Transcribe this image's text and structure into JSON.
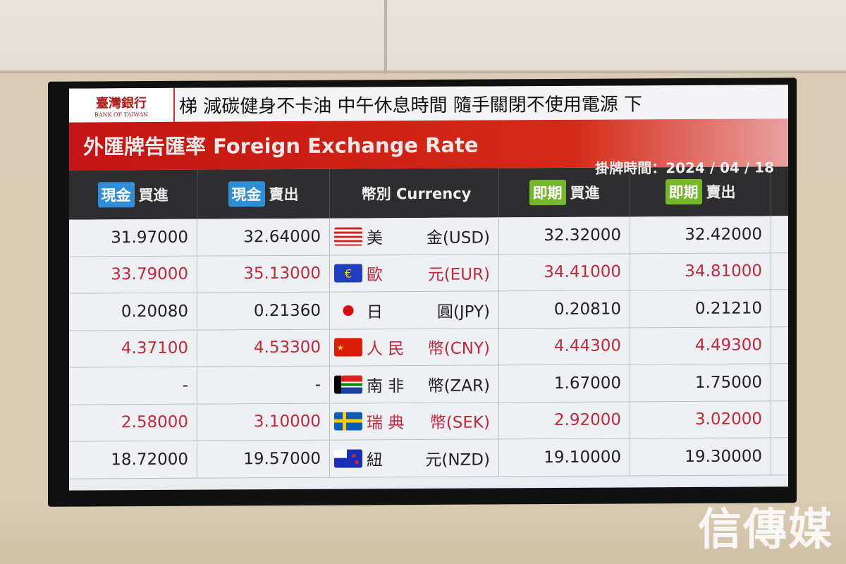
{
  "ticker": {
    "bank_name": "臺灣銀行",
    "bank_name_en": "BANK OF TAIWAN",
    "text": "梯 減碳健身不卡油 中午休息時間 隨手關閉不使用電源 下"
  },
  "title": "外匯牌告匯率 Foreign Exchange Rate",
  "posted_time": "掛牌時間：2024 / 04 / 18",
  "headers": {
    "cash_badge": "現金",
    "buy": "買進",
    "sell": "賣出",
    "currency": "幣別 Currency",
    "spot_badge": "即期"
  },
  "colors": {
    "red_band": "#c41414",
    "cash_badge": "#2e8fd8",
    "spot_badge": "#77b82a",
    "red_text": "#c22a3c"
  },
  "rows": [
    {
      "cash_buy": "31.97000",
      "cash_sell": "32.64000",
      "name_a": "美",
      "name_b": "金(USD)",
      "flag": "us-flag-icon",
      "flag_text": "",
      "cash_tone": "blk",
      "spot_buy": "32.32000",
      "spot_sell": "32.42000"
    },
    {
      "cash_buy": "33.79000",
      "cash_sell": "35.13000",
      "name_a": "歐",
      "name_b": "元(EUR)",
      "flag": "euro-icon",
      "flag_text": "€",
      "cash_tone": "red",
      "spot_buy": "34.41000",
      "spot_sell": "34.81000"
    },
    {
      "cash_buy": "0.20080",
      "cash_sell": "0.21360",
      "name_a": "日",
      "name_b": "圓(JPY)",
      "flag": "japan-flag-icon",
      "flag_text": "",
      "cash_tone": "blk",
      "spot_buy": "0.20810",
      "spot_sell": "0.21210"
    },
    {
      "cash_buy": "4.37100",
      "cash_sell": "4.53300",
      "name_a": "人 民",
      "name_b": "幣(CNY)",
      "flag": "china-flag-icon",
      "flag_text": "★",
      "cash_tone": "red",
      "spot_buy": "4.44300",
      "spot_sell": "4.49300"
    },
    {
      "cash_buy": "-",
      "cash_sell": "-",
      "name_a": "南 非",
      "name_b": "幣(ZAR)",
      "flag": "south-africa-flag-icon",
      "flag_text": "",
      "cash_tone": "blk",
      "spot_buy": "1.67000",
      "spot_sell": "1.75000"
    },
    {
      "cash_buy": "2.58000",
      "cash_sell": "3.10000",
      "name_a": "瑞 典",
      "name_b": "幣(SEK)",
      "flag": "sweden-flag-icon",
      "flag_text": "",
      "cash_tone": "red",
      "spot_buy": "2.92000",
      "spot_sell": "3.02000"
    },
    {
      "cash_buy": "18.72000",
      "cash_sell": "19.57000",
      "name_a": "紐",
      "name_b": "元(NZD)",
      "flag": "nz-flag-icon",
      "flag_text": "",
      "cash_tone": "blk",
      "spot_buy": "19.10000",
      "spot_sell": "19.30000"
    }
  ],
  "watermark": "信傳媒"
}
